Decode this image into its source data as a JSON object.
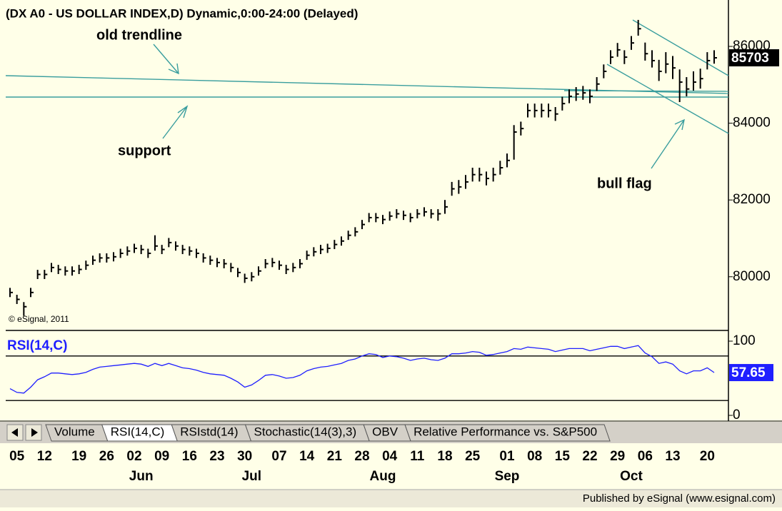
{
  "chart_data": [
    {
      "type": "ohlc",
      "title": "(DX A0 - US DOLLAR INDEX,D) Dynamic,0:00-24:00 (Delayed)",
      "annotations": [
        "old trendline",
        "support",
        "bull flag"
      ],
      "copyright": "© eSignal, 2011",
      "categories": [
        null,
        "05",
        null,
        null,
        null,
        "12",
        null,
        null,
        null,
        null,
        "19",
        null,
        null,
        null,
        "26",
        null,
        null,
        null,
        "02",
        null,
        null,
        null,
        "09",
        null,
        null,
        null,
        "16",
        null,
        null,
        null,
        "23",
        null,
        null,
        null,
        "30",
        null,
        null,
        null,
        null,
        "07",
        null,
        null,
        null,
        "14",
        null,
        null,
        null,
        "21",
        null,
        null,
        null,
        "28",
        null,
        null,
        null,
        "04",
        null,
        null,
        null,
        "11",
        null,
        null,
        null,
        "18",
        null,
        null,
        null,
        "25",
        null,
        null,
        null,
        null,
        "01",
        null,
        null,
        null,
        "08",
        null,
        null,
        null,
        "15",
        null,
        null,
        null,
        "22",
        null,
        null,
        null,
        "29",
        null,
        null,
        null,
        "06",
        null,
        null,
        null,
        "13",
        null,
        null,
        null,
        null,
        "20",
        null
      ],
      "month_labels": [
        null,
        null,
        null,
        null,
        null,
        null,
        null,
        null,
        null,
        null,
        null,
        null,
        null,
        null,
        null,
        null,
        null,
        null,
        null,
        "Jun",
        null,
        null,
        null,
        null,
        null,
        null,
        null,
        null,
        null,
        null,
        null,
        null,
        null,
        null,
        null,
        "Jul",
        null,
        null,
        null,
        null,
        null,
        null,
        null,
        null,
        null,
        null,
        null,
        null,
        null,
        null,
        null,
        null,
        null,
        null,
        "Aug",
        null,
        null,
        null,
        null,
        null,
        null,
        null,
        null,
        null,
        null,
        null,
        null,
        null,
        null,
        null,
        null,
        null,
        "Sep",
        null,
        null,
        null,
        null,
        null,
        null,
        null,
        null,
        null,
        null,
        null,
        null,
        null,
        null,
        null,
        null,
        null,
        "Oct",
        null,
        null,
        null,
        null,
        null,
        null,
        null,
        null,
        null,
        null,
        null,
        null
      ],
      "high": [
        79710,
        79530,
        79340,
        79710,
        80180,
        80180,
        80360,
        80310,
        80270,
        80270,
        80310,
        80420,
        80550,
        80610,
        80610,
        80640,
        80730,
        80790,
        80860,
        80830,
        80730,
        81080,
        80830,
        81010,
        80920,
        80830,
        80790,
        80730,
        80610,
        80550,
        80490,
        80460,
        80360,
        80230,
        80080,
        80120,
        80270,
        80460,
        80490,
        80420,
        80310,
        80360,
        80460,
        80680,
        80770,
        80830,
        80860,
        80960,
        81050,
        81200,
        81290,
        81480,
        81660,
        81660,
        81610,
        81700,
        81760,
        81720,
        81660,
        81760,
        81810,
        81760,
        81760,
        82000,
        82470,
        82520,
        82650,
        82840,
        82840,
        82740,
        82840,
        83020,
        83210,
        83950,
        84040,
        84510,
        84510,
        84510,
        84510,
        84420,
        84690,
        84880,
        84940,
        84970,
        84880,
        85200,
        85530,
        85900,
        86090,
        85900,
        86270,
        86690,
        86100,
        85900,
        85650,
        85850,
        85750,
        85400,
        85200,
        85350,
        85420,
        85850,
        85900
      ],
      "low": [
        79470,
        79290,
        78980,
        79470,
        79940,
        79940,
        80120,
        80070,
        80030,
        80030,
        80070,
        80180,
        80310,
        80370,
        80370,
        80400,
        80490,
        80550,
        80620,
        80590,
        80490,
        80680,
        80590,
        80770,
        80680,
        80590,
        80550,
        80490,
        80370,
        80310,
        80250,
        80220,
        80120,
        79990,
        79840,
        79880,
        80030,
        80220,
        80250,
        80180,
        80070,
        80120,
        80220,
        80440,
        80530,
        80590,
        80620,
        80720,
        80810,
        80960,
        81050,
        81240,
        81420,
        81420,
        81370,
        81460,
        81520,
        81480,
        81420,
        81520,
        81570,
        81520,
        81460,
        81640,
        82110,
        82160,
        82290,
        82480,
        82480,
        82380,
        82480,
        82660,
        82850,
        83050,
        83680,
        84150,
        84150,
        84150,
        84150,
        84060,
        84330,
        84520,
        84580,
        84610,
        84520,
        84840,
        85170,
        85540,
        85730,
        85540,
        85910,
        86280,
        85630,
        85450,
        85100,
        85300,
        85150,
        84550,
        84700,
        84850,
        84900,
        85400,
        85550
      ],
      "close": [
        79590,
        79410,
        79220,
        79590,
        80060,
        80060,
        80240,
        80190,
        80150,
        80150,
        80190,
        80300,
        80430,
        80490,
        80490,
        80520,
        80610,
        80670,
        80740,
        80710,
        80610,
        80800,
        80710,
        80890,
        80800,
        80710,
        80670,
        80610,
        80490,
        80430,
        80370,
        80340,
        80240,
        80110,
        79960,
        80000,
        80150,
        80340,
        80370,
        80300,
        80190,
        80240,
        80340,
        80560,
        80650,
        80710,
        80740,
        80840,
        80930,
        81080,
        81170,
        81360,
        81540,
        81540,
        81490,
        81580,
        81640,
        81600,
        81540,
        81640,
        81690,
        81640,
        81640,
        81820,
        82290,
        82340,
        82470,
        82660,
        82660,
        82560,
        82660,
        82840,
        83030,
        83770,
        83860,
        84330,
        84330,
        84330,
        84330,
        84240,
        84510,
        84700,
        84760,
        84790,
        84700,
        85020,
        85350,
        85720,
        85910,
        85720,
        86090,
        86460,
        85810,
        85630,
        85350,
        85540,
        85440,
        85070,
        84890,
        85070,
        85160,
        85630,
        85703
      ],
      "color": "#000000",
      "ylim": [
        78620,
        87060
      ],
      "yticks": [
        80000,
        82000,
        84000,
        86000
      ]
    },
    {
      "type": "line",
      "name": "RSI(14,C)",
      "color": "#1f1fff",
      "values": [
        36,
        31,
        30,
        38,
        48,
        52,
        57,
        57,
        56,
        55,
        56,
        58,
        62,
        65,
        66,
        67,
        68,
        69,
        70,
        69,
        66,
        70,
        67,
        70,
        67,
        64,
        63,
        61,
        58,
        56,
        55,
        54,
        50,
        45,
        38,
        41,
        47,
        54,
        55,
        53,
        50,
        51,
        54,
        60,
        63,
        65,
        66,
        68,
        70,
        74,
        76,
        80,
        83,
        82,
        78,
        80,
        79,
        77,
        74,
        76,
        77,
        75,
        74,
        77,
        83,
        83,
        84,
        86,
        85,
        81,
        82,
        84,
        86,
        90,
        89,
        92,
        91,
        90,
        89,
        86,
        88,
        90,
        90,
        90,
        87,
        89,
        91,
        93,
        93,
        90,
        92,
        94,
        84,
        79,
        70,
        72,
        69,
        60,
        56,
        60,
        60,
        64,
        57.65
      ],
      "bands": [
        20,
        80
      ],
      "ylim": [
        0,
        100
      ],
      "yticks": [
        0,
        100
      ]
    }
  ],
  "tabs": [
    "Volume",
    "RSI(14,C)",
    "RSIstd(14)",
    "Stochastic(14(3),3)",
    "OBV",
    "Relative Performance vs. S&P500"
  ],
  "footer": "Published by eSignal (www.esignal.com)"
}
